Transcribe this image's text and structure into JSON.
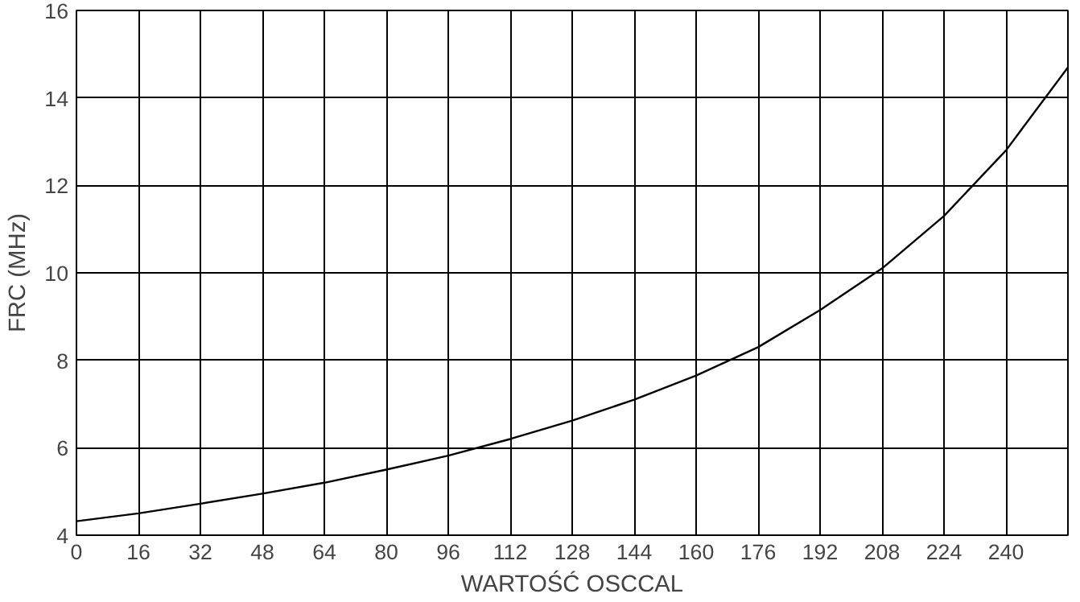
{
  "chart_data": {
    "type": "line",
    "xlabel": "WARTOŚĆ OSCCAL",
    "ylabel": "FRC (MHz)",
    "x": [
      0,
      16,
      32,
      48,
      64,
      80,
      96,
      112,
      128,
      144,
      160,
      176,
      192,
      208,
      224,
      240,
      256
    ],
    "series": [
      {
        "color": "#000000",
        "values": [
          4.32,
          4.5,
          4.72,
          4.95,
          5.2,
          5.5,
          5.82,
          6.2,
          6.62,
          7.1,
          7.65,
          8.3,
          9.15,
          10.1,
          11.3,
          12.8,
          14.7
        ]
      }
    ],
    "xlim": [
      0,
      256
    ],
    "xticks": [
      0,
      16,
      32,
      48,
      64,
      80,
      96,
      112,
      128,
      144,
      160,
      176,
      192,
      208,
      224,
      240
    ],
    "ylim": [
      4,
      16
    ],
    "yticks": [
      4,
      6,
      8,
      10,
      12,
      14,
      16
    ],
    "grid": true,
    "marker": "none",
    "line_style": "solid"
  }
}
